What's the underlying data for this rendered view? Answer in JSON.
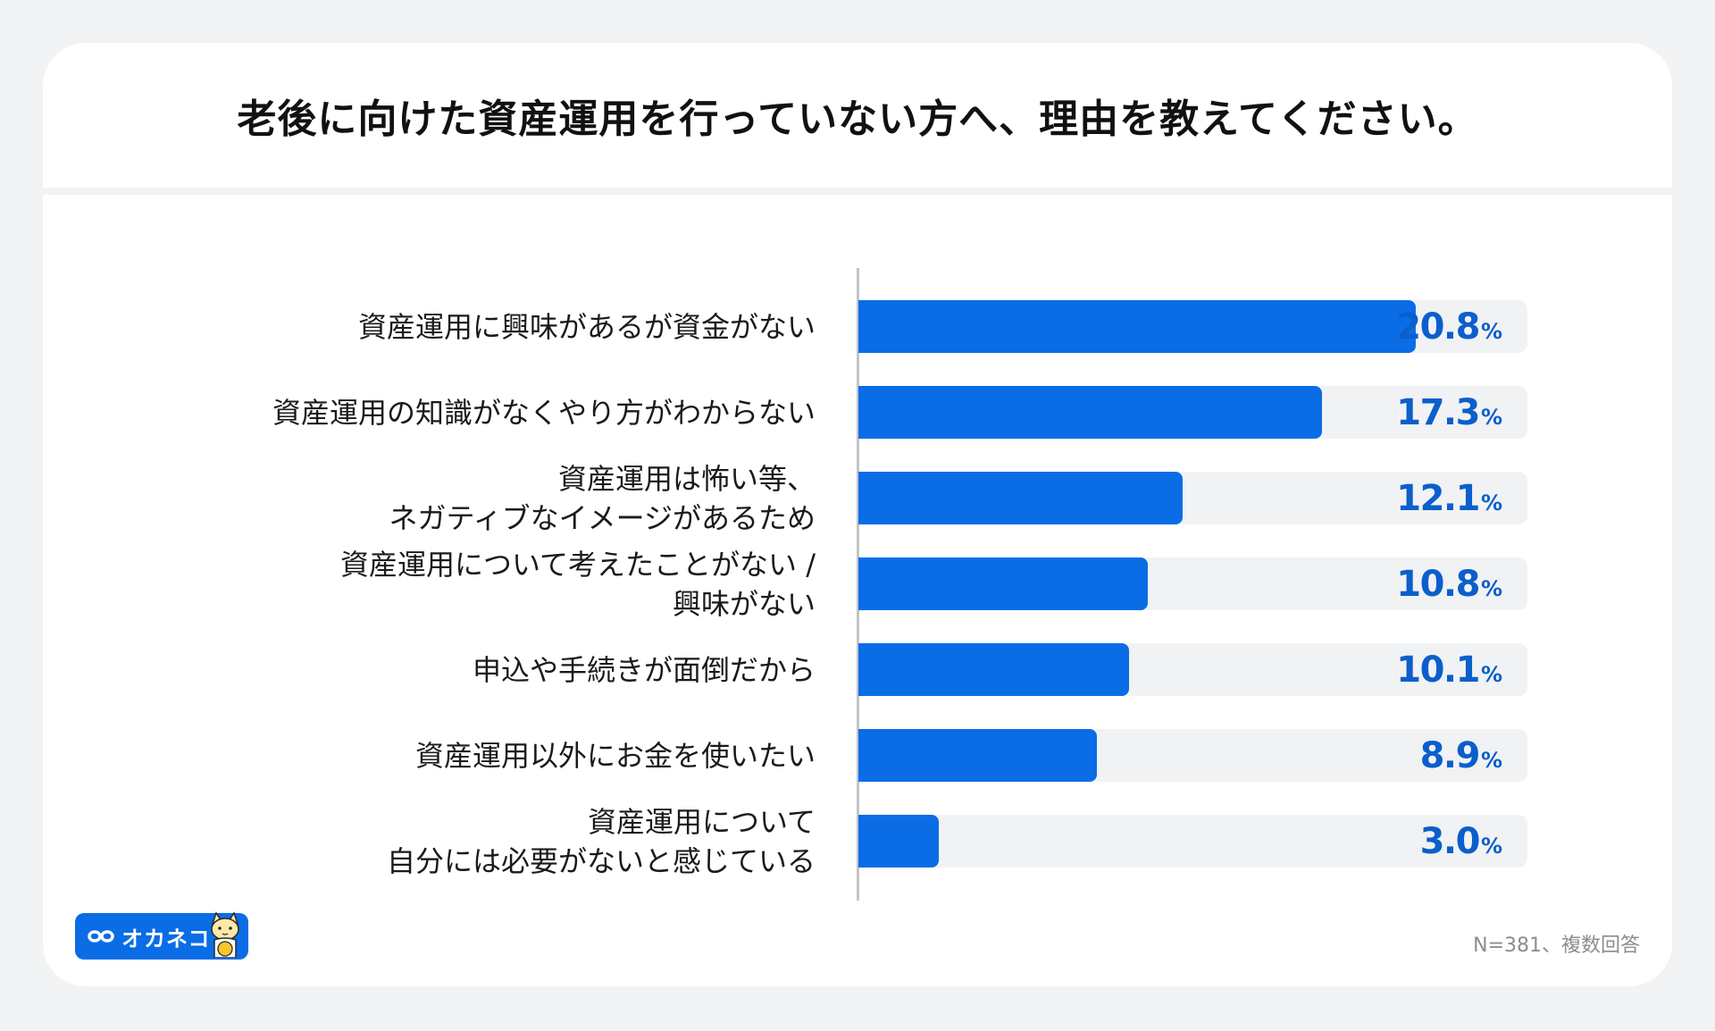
{
  "title": "老後に向けた資産運用を行っていない方へ、理由を教えてください。",
  "footnote": "N=381、複数回答",
  "logo": {
    "text": "オカネコ",
    "icon": "okaneko-cat-icon"
  },
  "colors": {
    "bar": "#0a6de6",
    "track": "#f1f2f4",
    "value": "#0b5fcc"
  },
  "chart_data": {
    "type": "bar",
    "orientation": "horizontal",
    "title": "老後に向けた資産運用を行っていない方へ、理由を教えてください。",
    "categories": [
      "資産運用に興味があるが資金がない",
      "資産運用の知識がなくやり方がわからない",
      "資産運用は怖い等、\nネガティブなイメージがあるため",
      "資産運用について考えたことがない /\n興味がない",
      "申込や手続きが面倒だから",
      "資産運用以外にお金を使いたい",
      "資産運用について\n自分には必要がないと感じている"
    ],
    "values": [
      20.8,
      17.3,
      12.1,
      10.8,
      10.1,
      8.9,
      3.0
    ],
    "value_labels": [
      "20.8",
      "17.3",
      "12.1",
      "10.8",
      "10.1",
      "8.9",
      "3.0"
    ],
    "unit": "%",
    "xlim": [
      0,
      25
    ],
    "grid": false,
    "legend": "none"
  }
}
